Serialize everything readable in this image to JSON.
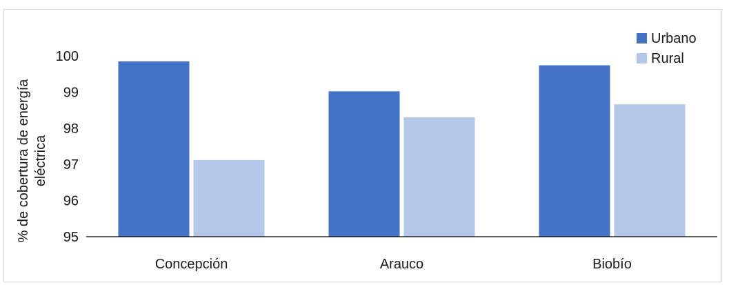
{
  "chart_data": {
    "type": "bar",
    "title": "",
    "xlabel": "",
    "ylabel": [
      "% de cobertura de energía",
      "eléctrica"
    ],
    "categories": [
      "Concepción",
      "Arauco",
      "Biobío"
    ],
    "series": [
      {
        "name": "Urbano",
        "values": [
          99.85,
          99.02,
          99.74
        ],
        "color": "#4472c4"
      },
      {
        "name": "Rural",
        "values": [
          97.12,
          98.3,
          98.66
        ],
        "color": "#b4c7e7"
      }
    ],
    "ylim": [
      95,
      100
    ],
    "yticks": [
      95,
      96,
      97,
      98,
      99,
      100
    ],
    "grid": false,
    "legend_position": "top-right"
  }
}
